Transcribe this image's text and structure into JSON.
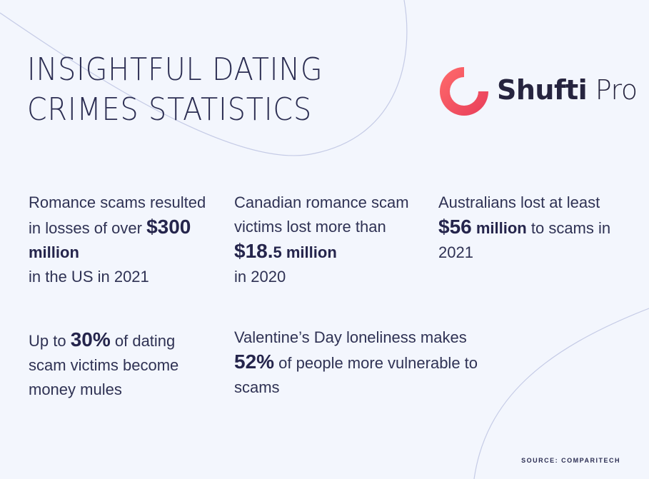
{
  "title": {
    "line1": "INSIGHTFUL DATING",
    "line2": "CRIMES STATISTICS"
  },
  "brand": {
    "bold": "Shufti",
    "light": "Pro",
    "mark_color": "#f0505a"
  },
  "colors": {
    "background": "#f3f6fd",
    "text": "#2b2d52",
    "curve": "#c5cbe6"
  },
  "stats": [
    {
      "before": "Romance scams resulted in losses of over ",
      "highlight": "$300",
      "highlight_unit": "million",
      "after": "in the US in 2021"
    },
    {
      "before": "Canadian romance scam victims lost more than ",
      "highlight": "$18.",
      "highlight_small": "5",
      "highlight_unit": "million",
      "after": "in 2020"
    },
    {
      "before": "Australians lost at least",
      "highlight": "$56",
      "highlight_unit": "million",
      "after": "to scams in 2021"
    },
    {
      "before": "Up to ",
      "highlight": "30%",
      "after": "of dating scam victims become money mules"
    },
    {
      "before": "Valentine’s Day loneliness makes",
      "highlight": "52%",
      "after": "of people more vulnerable to scams"
    }
  ],
  "source": "SOURCE: COMPARITECH"
}
